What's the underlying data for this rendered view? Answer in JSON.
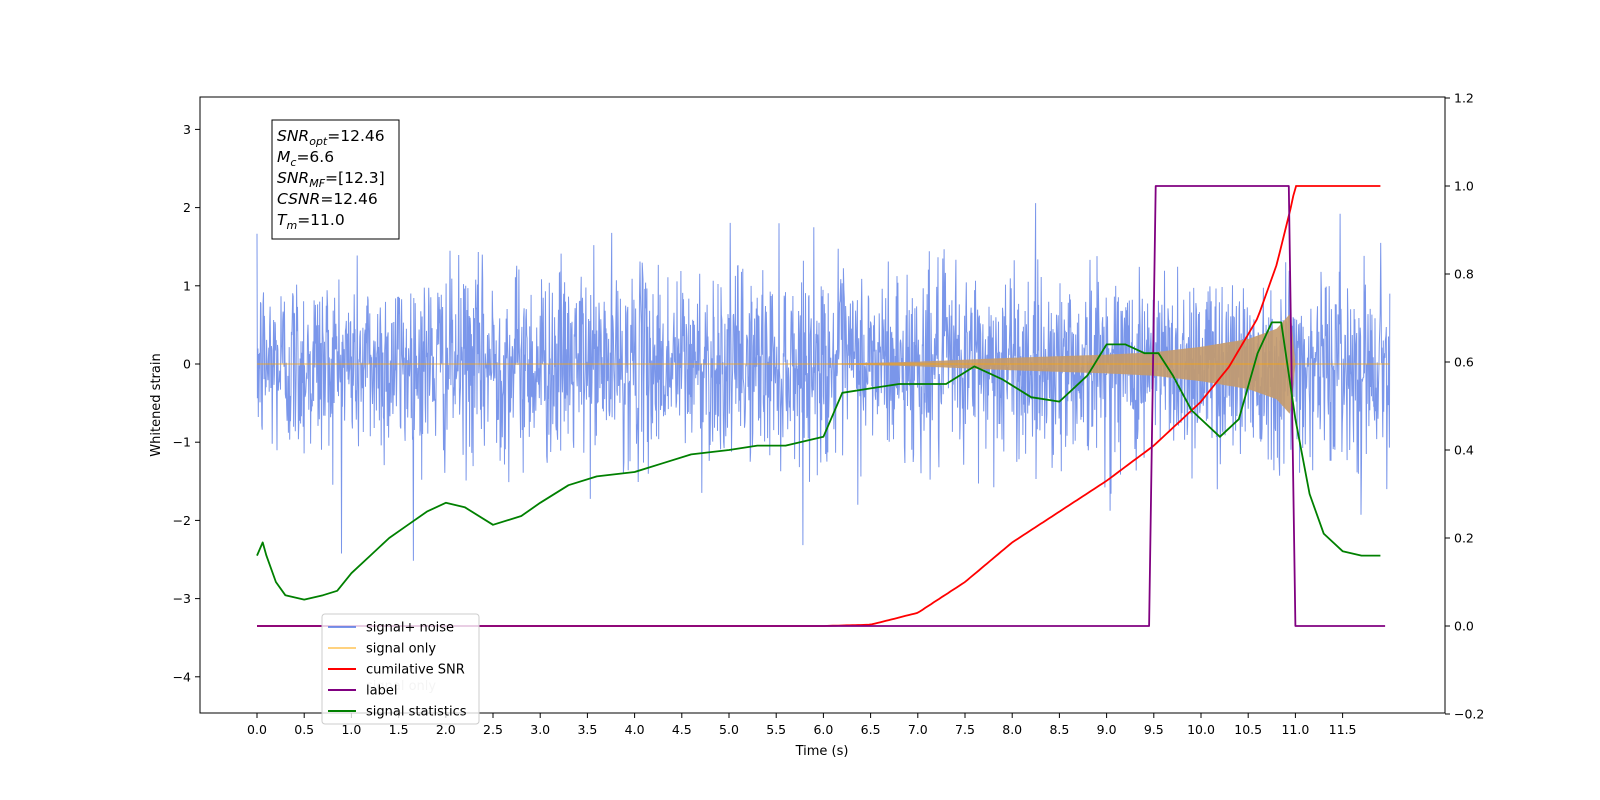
{
  "chart_data": {
    "type": "line",
    "xlabel": "Time (s)",
    "ylabel": "Whitened strain",
    "xlim": [
      -0.6,
      12.6
    ],
    "ylim": [
      -4.5,
      3.4
    ],
    "y2lim": [
      -0.2,
      1.2
    ],
    "xticks": [
      "0.0",
      "0.5",
      "1.0",
      "1.5",
      "2.0",
      "2.5",
      "3.0",
      "3.5",
      "4.0",
      "4.5",
      "5.0",
      "5.5",
      "6.0",
      "6.5",
      "7.0",
      "7.5",
      "8.0",
      "8.5",
      "9.0",
      "9.5",
      "10.0",
      "10.5",
      "11.0",
      "11.5"
    ],
    "xtick_values": [
      0,
      0.5,
      1,
      1.5,
      2,
      2.5,
      3,
      3.5,
      4,
      4.5,
      5,
      5.5,
      6,
      6.5,
      7,
      7.5,
      8,
      8.5,
      9,
      9.5,
      10,
      10.5,
      11,
      11.5
    ],
    "yticks": [
      "−4",
      "−3",
      "−2",
      "−1",
      "0",
      "1",
      "2",
      "3"
    ],
    "ytick_values": [
      -4,
      -3,
      -2,
      -1,
      0,
      1,
      2,
      3
    ],
    "y2ticks": [
      "−0.2",
      "0.0",
      "0.2",
      "0.4",
      "0.6",
      "0.8",
      "1.0",
      "1.2"
    ],
    "y2tick_values": [
      -0.2,
      0,
      0.2,
      0.4,
      0.6,
      0.8,
      1.0,
      1.2
    ],
    "grid": false,
    "legend_position": "lower-left",
    "annotation": {
      "lines": [
        {
          "main": "SNR",
          "sub": "opt",
          "value": "=12.46"
        },
        {
          "main": "M",
          "sub": "c",
          "value": "=6.6"
        },
        {
          "main": "SNR",
          "sub": "MF",
          "value": "=[12.3]"
        },
        {
          "main": "CSNR",
          "sub": "",
          "value": "=12.46"
        },
        {
          "main": "T",
          "sub": "m",
          "value": "=11.0"
        }
      ]
    },
    "series": [
      {
        "name": "signal+ noise",
        "axis": "left",
        "color": "#4169e1",
        "description_t_range": [
          0,
          12
        ],
        "noise_sigma": 0.6
      },
      {
        "name": "signal only",
        "axis": "left",
        "color": "#ffa500",
        "envelope": {
          "x": [
            0,
            6.0,
            7.0,
            8.0,
            9.0,
            9.5,
            10.0,
            10.5,
            10.8,
            10.95,
            11.0,
            12.0
          ],
          "amp": [
            0,
            0,
            0.03,
            0.08,
            0.12,
            0.15,
            0.22,
            0.32,
            0.45,
            0.65,
            0,
            0
          ]
        }
      },
      {
        "name": "cumilative SNR",
        "axis": "right",
        "color": "#ff0000",
        "x": [
          0,
          6.0,
          6.5,
          7.0,
          7.5,
          8.0,
          8.5,
          9.0,
          9.5,
          10.0,
          10.3,
          10.6,
          10.8,
          10.95,
          11.0,
          11.9
        ],
        "y": [
          0,
          0,
          0.003,
          0.03,
          0.1,
          0.19,
          0.26,
          0.33,
          0.41,
          0.51,
          0.59,
          0.7,
          0.82,
          0.95,
          1.0,
          1.0
        ]
      },
      {
        "name": "label",
        "axis": "right",
        "color": "#800080",
        "x": [
          0,
          9.45,
          9.52,
          10.93,
          11.0,
          11.95
        ],
        "y": [
          0,
          0,
          1,
          1,
          0,
          0
        ]
      },
      {
        "name": "signal statistics",
        "axis": "right",
        "color": "#008000",
        "x": [
          0,
          0.06,
          0.1,
          0.2,
          0.3,
          0.5,
          0.7,
          0.85,
          1.0,
          1.2,
          1.4,
          1.6,
          1.8,
          2.0,
          2.2,
          2.5,
          2.8,
          3.0,
          3.3,
          3.6,
          4.0,
          4.3,
          4.6,
          5.0,
          5.3,
          5.6,
          6.0,
          6.2,
          6.5,
          6.8,
          7.0,
          7.3,
          7.6,
          7.9,
          8.2,
          8.5,
          8.8,
          9.0,
          9.2,
          9.4,
          9.55,
          9.7,
          9.9,
          10.2,
          10.4,
          10.6,
          10.75,
          10.85,
          11.0,
          11.15,
          11.3,
          11.5,
          11.7,
          11.9
        ],
        "y": [
          0.16,
          0.19,
          0.16,
          0.1,
          0.07,
          0.06,
          0.07,
          0.08,
          0.12,
          0.16,
          0.2,
          0.23,
          0.26,
          0.28,
          0.27,
          0.23,
          0.25,
          0.28,
          0.32,
          0.34,
          0.35,
          0.37,
          0.39,
          0.4,
          0.41,
          0.41,
          0.43,
          0.53,
          0.54,
          0.55,
          0.55,
          0.55,
          0.59,
          0.56,
          0.52,
          0.51,
          0.57,
          0.64,
          0.64,
          0.62,
          0.62,
          0.57,
          0.49,
          0.43,
          0.47,
          0.62,
          0.69,
          0.69,
          0.47,
          0.3,
          0.21,
          0.17,
          0.16,
          0.16
        ]
      },
      {
        "name": "signal only",
        "axis": "left",
        "color": "#cccccc",
        "hidden_overlap": true
      },
      {
        "name": "signal statistics",
        "axis": "left",
        "color": "#cccccc",
        "hidden_overlap": true
      }
    ],
    "legend_entries": [
      {
        "label": "signal+ noise",
        "color": "#4169e1",
        "alpha": 0.7
      },
      {
        "label": "signal only",
        "color": "#ffa500",
        "alpha": 0.5
      },
      {
        "label": "cumilative SNR",
        "color": "#ff0000",
        "alpha": 1
      },
      {
        "label": "label",
        "color": "#800080",
        "alpha": 1
      },
      {
        "label": "signal statistics",
        "color": "#008000",
        "alpha": 1
      }
    ],
    "ghost_legend_text": [
      "signal only"
    ]
  }
}
